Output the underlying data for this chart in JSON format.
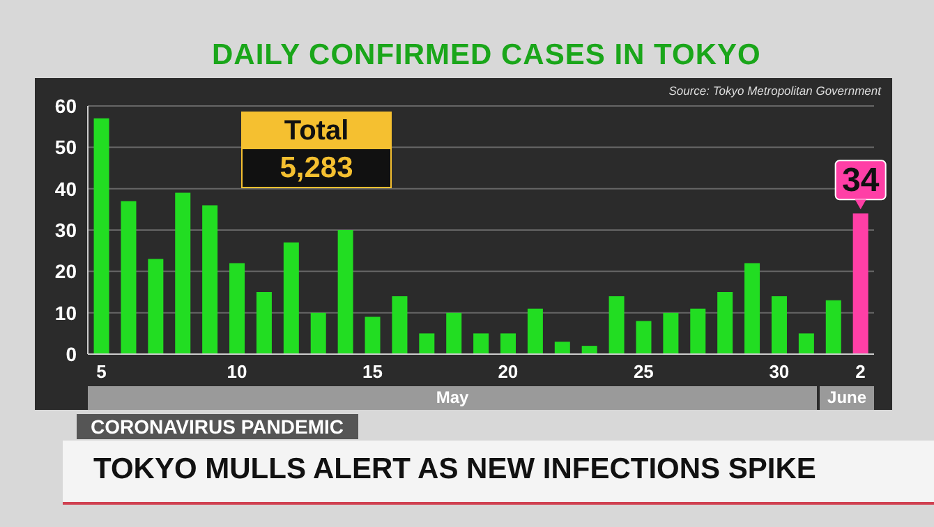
{
  "chart_data": {
    "type": "bar",
    "title": "DAILY CONFIRMED CASES IN TOKYO",
    "categories": [
      "5",
      null,
      null,
      null,
      null,
      "10",
      null,
      null,
      null,
      null,
      "15",
      null,
      null,
      null,
      null,
      "20",
      null,
      null,
      null,
      null,
      "25",
      null,
      null,
      null,
      null,
      "30",
      null,
      null,
      "2"
    ],
    "values": [
      57,
      37,
      23,
      39,
      36,
      22,
      15,
      27,
      10,
      30,
      9,
      14,
      5,
      10,
      5,
      5,
      11,
      3,
      2,
      14,
      8,
      10,
      11,
      15,
      22,
      14,
      5,
      13,
      34
    ],
    "colors": [
      "#22dd22",
      "#22dd22",
      "#22dd22",
      "#22dd22",
      "#22dd22",
      "#22dd22",
      "#22dd22",
      "#22dd22",
      "#22dd22",
      "#22dd22",
      "#22dd22",
      "#22dd22",
      "#22dd22",
      "#22dd22",
      "#22dd22",
      "#22dd22",
      "#22dd22",
      "#22dd22",
      "#22dd22",
      "#22dd22",
      "#22dd22",
      "#22dd22",
      "#22dd22",
      "#22dd22",
      "#22dd22",
      "#22dd22",
      "#22dd22",
      "#22dd22",
      "#ff3fa6"
    ],
    "value_labels": [
      null,
      null,
      null,
      null,
      null,
      null,
      null,
      null,
      null,
      null,
      null,
      null,
      null,
      null,
      null,
      null,
      null,
      null,
      null,
      null,
      null,
      null,
      null,
      null,
      null,
      null,
      null,
      null,
      "34"
    ],
    "ylim": [
      0,
      60
    ],
    "yticks": [
      0,
      10,
      20,
      30,
      40,
      50,
      60
    ],
    "grid": "y",
    "annotations": [
      "Source: Tokyo Metropolitan Government",
      "Total",
      "5,283",
      "May",
      "June",
      "CORONAVIRUS PANDEMIC",
      "TOKYO MULLS ALERT AS NEW INFECTIONS SPIKE"
    ]
  }
}
